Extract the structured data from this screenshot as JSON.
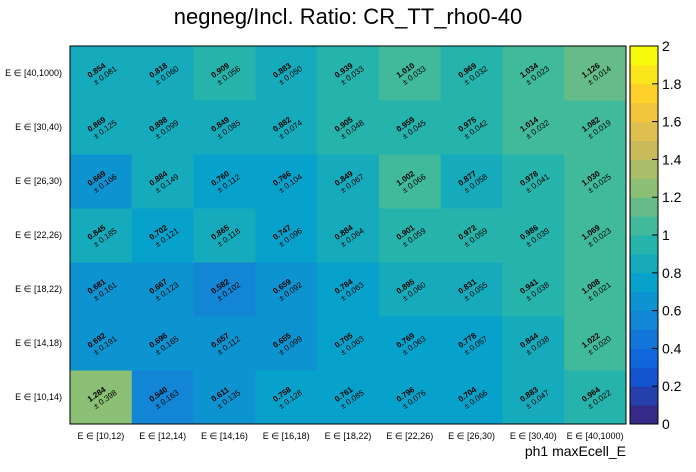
{
  "chart_data": {
    "type": "heatmap",
    "title": "negneg/Incl. Ratio: CR_TT_rho0-40",
    "xlabel": "ph1 maxEcell_E",
    "ylabel": "",
    "x_categories": [
      "E ∈ [10,12)",
      "E ∈ [12,14)",
      "E ∈ [14,16)",
      "E ∈ [16,18)",
      "E ∈ [18,22)",
      "E ∈ [22,26)",
      "E ∈ [26,30)",
      "E ∈ [30,40)",
      "E ∈ [40,1000)"
    ],
    "y_categories": [
      "E ∈ [10,14)",
      "E ∈ [14,18)",
      "E ∈ [18,22)",
      "E ∈ [22,26)",
      "E ∈ [26,30)",
      "E ∈ [30,40)",
      "E ∈ [40,1000)"
    ],
    "zlim": [
      0,
      2
    ],
    "colorbar_ticks": [
      "0",
      "0.2",
      "0.4",
      "0.6",
      "0.8",
      "1",
      "1.2",
      "1.4",
      "1.6",
      "1.8",
      "2"
    ],
    "values": [
      [
        1.284,
        0.54,
        0.611,
        0.758,
        0.761,
        0.796,
        0.704,
        0.883,
        0.964
      ],
      [
        0.692,
        0.696,
        0.657,
        0.655,
        0.705,
        0.769,
        0.778,
        0.844,
        1.022
      ],
      [
        0.681,
        0.667,
        0.582,
        0.659,
        0.784,
        0.895,
        0.831,
        0.941,
        1.008
      ],
      [
        0.845,
        0.702,
        0.865,
        0.747,
        0.884,
        0.901,
        0.972,
        0.986,
        1.069
      ],
      [
        0.669,
        0.884,
        0.76,
        0.766,
        0.849,
        1.002,
        0.877,
        0.978,
        1.03
      ],
      [
        0.869,
        0.898,
        0.849,
        0.882,
        0.905,
        0.959,
        0.975,
        1.014,
        1.082
      ],
      [
        0.854,
        0.818,
        0.909,
        0.883,
        0.939,
        1.01,
        0.969,
        1.034,
        1.126
      ]
    ],
    "errors": [
      [
        0.398,
        0.163,
        0.135,
        0.128,
        0.085,
        0.076,
        0.066,
        0.047,
        0.022
      ],
      [
        0.191,
        0.165,
        0.112,
        0.099,
        0.063,
        0.063,
        0.057,
        0.038,
        0.02
      ],
      [
        0.161,
        0.123,
        0.102,
        0.092,
        0.063,
        0.06,
        0.055,
        0.038,
        0.021
      ],
      [
        0.185,
        0.121,
        0.118,
        0.096,
        0.064,
        0.059,
        0.059,
        0.039,
        0.023
      ],
      [
        0.166,
        0.149,
        0.112,
        0.104,
        0.067,
        0.066,
        0.058,
        0.041,
        0.025
      ],
      [
        0.125,
        0.099,
        0.085,
        0.074,
        0.048,
        0.045,
        0.042,
        0.032,
        0.019
      ],
      [
        0.081,
        0.06,
        0.056,
        0.05,
        0.033,
        0.033,
        0.032,
        0.023,
        0.014
      ]
    ],
    "grid": false,
    "colorbar": "right"
  }
}
